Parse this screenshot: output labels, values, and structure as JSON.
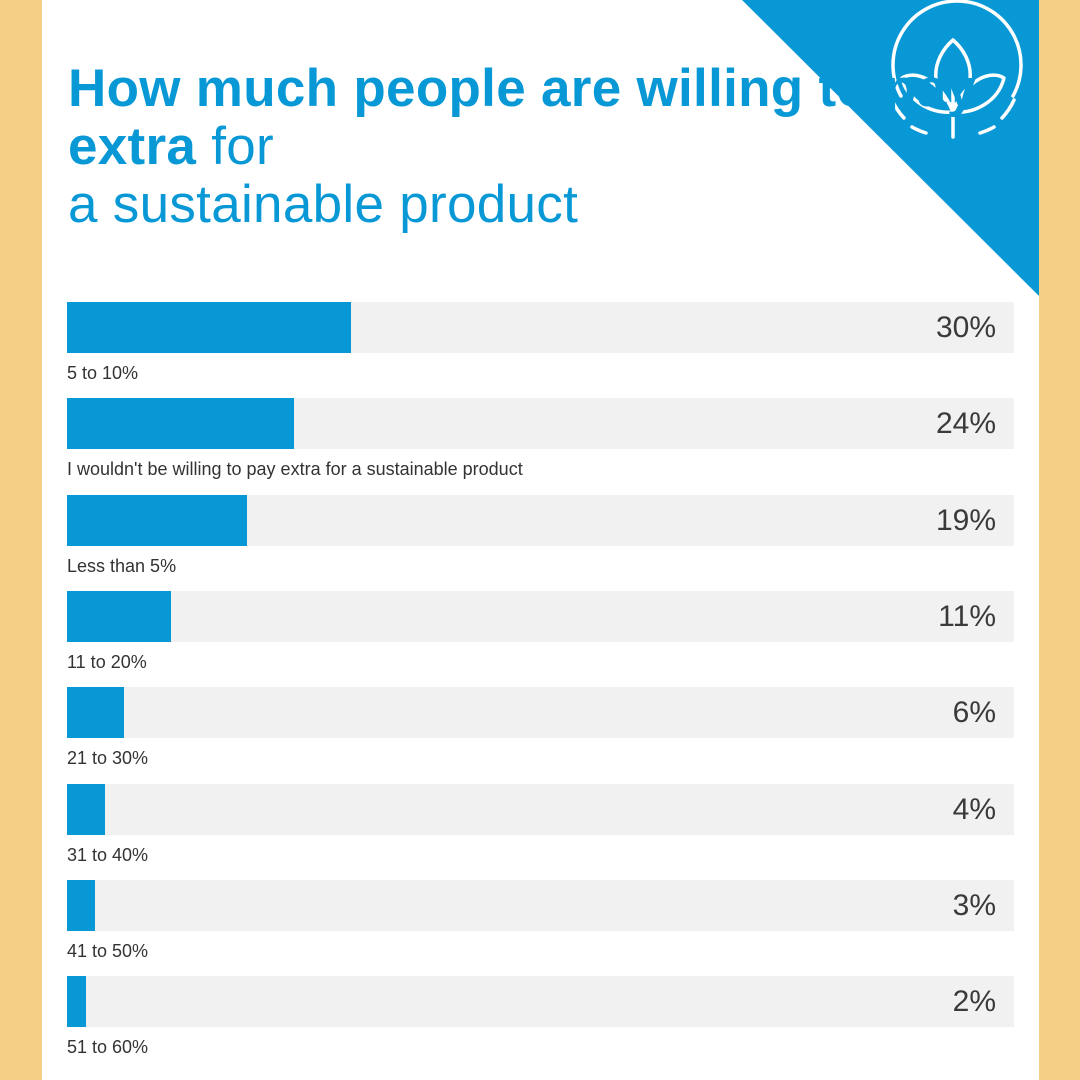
{
  "title": {
    "bold_part": "How much people are willing to pay extra",
    "light_part_1": "for",
    "light_part_2": "a sustainable product"
  },
  "colors": {
    "accent": "#0898d6",
    "track": "#f1f1f1",
    "frame": "#f6cf86",
    "text": "#333333"
  },
  "icon": "sprout-leaf-icon",
  "chart_data": {
    "type": "bar",
    "orientation": "horizontal",
    "xlim": [
      0,
      100
    ],
    "categories": [
      "5 to 10%",
      "I wouldn't be willing to pay extra for a sustainable product",
      "Less than 5%",
      "11 to 20%",
      "21 to 30%",
      "31 to 40%",
      "41 to 50%",
      "51 to 60%"
    ],
    "values": [
      30,
      24,
      19,
      11,
      6,
      4,
      3,
      2
    ],
    "value_labels": [
      "30%",
      "24%",
      "19%",
      "11%",
      "6%",
      "4%",
      "3%",
      "2%"
    ],
    "grid": false,
    "legend": "none"
  }
}
